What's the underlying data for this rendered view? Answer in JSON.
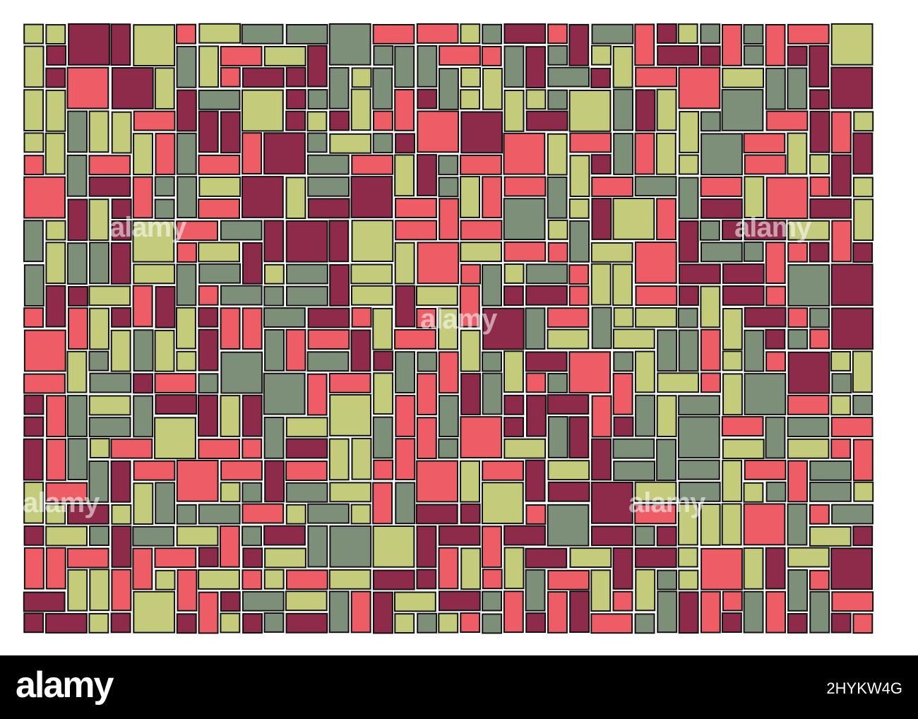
{
  "artwork": {
    "palette": {
      "maroon": "#8E2A4A",
      "coral": "#EE5D66",
      "sage": "#7E8F79",
      "lime": "#C4CC7C",
      "outline": "#111111",
      "background": "#FFFFFF"
    },
    "tile_pattern": "random rectangles and squares with black outlines"
  },
  "watermarks": {
    "text": "alamy"
  },
  "footer": {
    "brand": "alamy",
    "image_id": "2HYKW4G"
  }
}
